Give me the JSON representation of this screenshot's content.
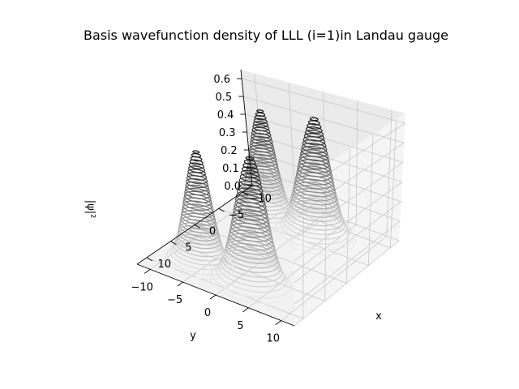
{
  "chart_data": {
    "type": "surface-3d",
    "title": "Basis wavefunction density of LLL (i=1)in Landau gauge",
    "xlabel": "x",
    "ylabel": "y",
    "zlabel": "|ψ|²",
    "xlim": [
      -12,
      12
    ],
    "ylim": [
      -12,
      12
    ],
    "zlim": [
      0,
      0.65
    ],
    "x_ticks": [
      "−10",
      "−5",
      "0",
      "5",
      "10"
    ],
    "y_ticks": [
      "−10",
      "−5",
      "0",
      "5",
      "10"
    ],
    "z_ticks": [
      "0.0",
      "0.1",
      "0.2",
      "0.3",
      "0.4",
      "0.5",
      "0.6"
    ],
    "x_tick_values": [
      -10,
      -5,
      0,
      5,
      10
    ],
    "y_tick_values": [
      -10,
      -5,
      0,
      5,
      10
    ],
    "z_tick_values": [
      0,
      0.1,
      0.2,
      0.3,
      0.4,
      0.5,
      0.6
    ],
    "peaks": [
      {
        "x": 7,
        "y": -6,
        "height": 0.58,
        "width": 0.9
      },
      {
        "x": 7,
        "y": 2,
        "height": 0.63,
        "width": 1.1
      },
      {
        "x": -7,
        "y": -6,
        "height": 0.58,
        "width": 0.9
      },
      {
        "x": -7,
        "y": 2,
        "height": 0.62,
        "width": 1.1
      }
    ],
    "grid": true,
    "colormap": "greys"
  }
}
